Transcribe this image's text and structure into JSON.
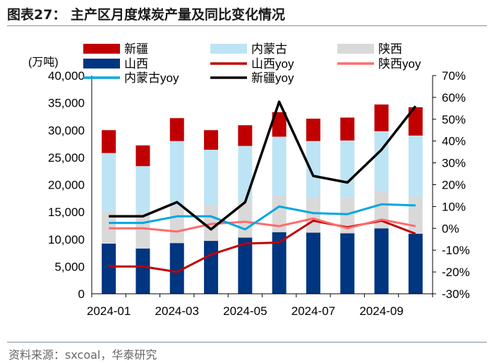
{
  "header": {
    "title": "图表27：  主产区月度煤炭产量及同比变化情况"
  },
  "footer": {
    "source": "资料来源：sxcoal，华泰研究"
  },
  "chart_data": {
    "type": "bar",
    "stacked": true,
    "categories": [
      "2024-01",
      "2024-02",
      "2024-03",
      "2024-04",
      "2024-05",
      "2024-06",
      "2024-07",
      "2024-08",
      "2024-09",
      "2024-10"
    ],
    "x_tick_labels": [
      "2024-01",
      "",
      "2024-03",
      "",
      "2024-05",
      "",
      "2024-07",
      "",
      "2024-09",
      ""
    ],
    "left_axis": {
      "unit_label": "(万吨)",
      "ylim": [
        0,
        40000
      ],
      "ticks": [
        "0",
        "5,000",
        "10,000",
        "15,000",
        "20,000",
        "25,000",
        "30,000",
        "35,000",
        "40,000"
      ]
    },
    "right_axis": {
      "ylim": [
        -30,
        70
      ],
      "ticks": [
        "-30%",
        "-20%",
        "-10%",
        "0%",
        "10%",
        "20%",
        "30%",
        "40%",
        "50%",
        "60%",
        "70%"
      ]
    },
    "series": [
      {
        "name": "山西",
        "axis": "left",
        "kind": "bar",
        "color": "#003580",
        "values": [
          9200,
          8300,
          9300,
          9700,
          10300,
          11300,
          11200,
          11100,
          12000,
          11000
        ]
      },
      {
        "name": "陕西",
        "axis": "left",
        "kind": "bar",
        "color": "#d9d9d9",
        "values": [
          6000,
          6500,
          6700,
          6600,
          6800,
          6700,
          6400,
          6600,
          6900,
          6800
        ]
      },
      {
        "name": "内蒙古",
        "axis": "left",
        "kind": "bar",
        "color": "#bde4f4",
        "values": [
          10600,
          8600,
          12000,
          10100,
          10000,
          10800,
          10400,
          10400,
          10900,
          11200
        ]
      },
      {
        "name": "新疆",
        "axis": "left",
        "kind": "bar",
        "color": "#c00000",
        "values": [
          4200,
          3800,
          4200,
          3600,
          3800,
          4500,
          4100,
          4200,
          4900,
          5200
        ]
      },
      {
        "name": "山西yoy",
        "axis": "right",
        "kind": "line",
        "color": "#c00000",
        "values": [
          -17.5,
          -17.5,
          -20,
          -12,
          -7,
          -6.5,
          3.5,
          0.5,
          3.5,
          -2.5
        ]
      },
      {
        "name": "陕西yoy",
        "axis": "right",
        "kind": "line",
        "color": "#ff6b6b",
        "values": [
          0,
          0,
          -1.5,
          2,
          3,
          1,
          4.5,
          0,
          4,
          1
        ]
      },
      {
        "name": "内蒙古yoy",
        "axis": "right",
        "kind": "line",
        "color": "#00a7e1",
        "values": [
          2.5,
          2.5,
          5.5,
          5.5,
          -0.5,
          10,
          7,
          6.5,
          11,
          10.5
        ]
      },
      {
        "name": "新疆yoy",
        "axis": "right",
        "kind": "line",
        "color": "#000000",
        "values": [
          5.5,
          5.5,
          12,
          -0.5,
          12,
          58,
          24,
          21,
          36,
          56
        ]
      }
    ],
    "legend": {
      "placement": "top",
      "rows": [
        [
          {
            "label": "新疆",
            "style": "box",
            "color": "#c00000"
          },
          {
            "label": "内蒙古",
            "style": "box",
            "color": "#bde4f4"
          },
          {
            "label": "陕西",
            "style": "box",
            "color": "#d9d9d9"
          }
        ],
        [
          {
            "label": "山西",
            "style": "box",
            "color": "#003580"
          },
          {
            "label": "山西yoy",
            "style": "line",
            "color": "#c00000"
          },
          {
            "label": "陕西yoy",
            "style": "line",
            "color": "#ff6b6b"
          }
        ],
        [
          {
            "label": "内蒙古yoy",
            "style": "line",
            "color": "#00a7e1"
          },
          {
            "label": "新疆yoy",
            "style": "line",
            "color": "#000000"
          }
        ]
      ]
    }
  }
}
